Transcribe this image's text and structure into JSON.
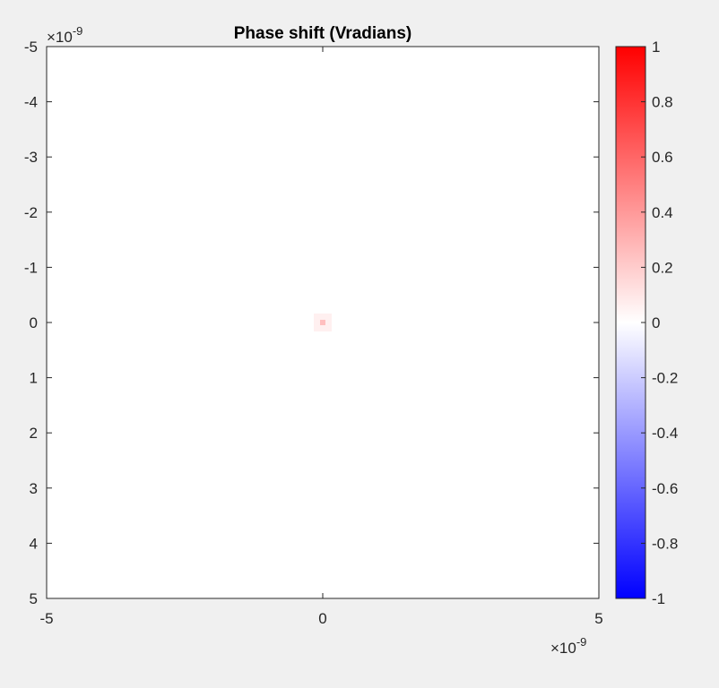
{
  "chart_data": {
    "type": "heatmap",
    "title": "Phase shift (Vradians)",
    "xlabel": "",
    "ylabel": "",
    "x_exponent_label": "×10",
    "x_exponent_power": "-9",
    "y_exponent_label": "×10",
    "y_exponent_power": "-9",
    "xlim": [
      -5,
      5
    ],
    "ylim": [
      -5,
      5
    ],
    "y_direction": "reverse",
    "x_tick_labels": [
      "-5",
      "0",
      "5"
    ],
    "x_tick_values": [
      -5,
      0,
      5
    ],
    "y_tick_labels": [
      "-5",
      "-4",
      "-3",
      "-2",
      "-1",
      "0",
      "1",
      "2",
      "3",
      "4",
      "5"
    ],
    "y_tick_values": [
      -5,
      -4,
      -3,
      -2,
      -1,
      0,
      1,
      2,
      3,
      4,
      5
    ],
    "grid": false,
    "background_value": 0,
    "hotspot": {
      "x": 0,
      "y": 0,
      "value": 0.25,
      "halo_value": 0.06
    },
    "colorbar": {
      "limits": [
        -1,
        1
      ],
      "tick_labels": [
        "1",
        "0.8",
        "0.6",
        "0.4",
        "0.2",
        "0",
        "-0.2",
        "-0.4",
        "-0.6",
        "-0.8",
        "-1"
      ],
      "tick_values": [
        1,
        0.8,
        0.6,
        0.4,
        0.2,
        0,
        -0.2,
        -0.4,
        -0.6,
        -0.8,
        -1
      ],
      "colormap": [
        "#0000ff",
        "#ffffff",
        "#ff0000"
      ]
    }
  }
}
